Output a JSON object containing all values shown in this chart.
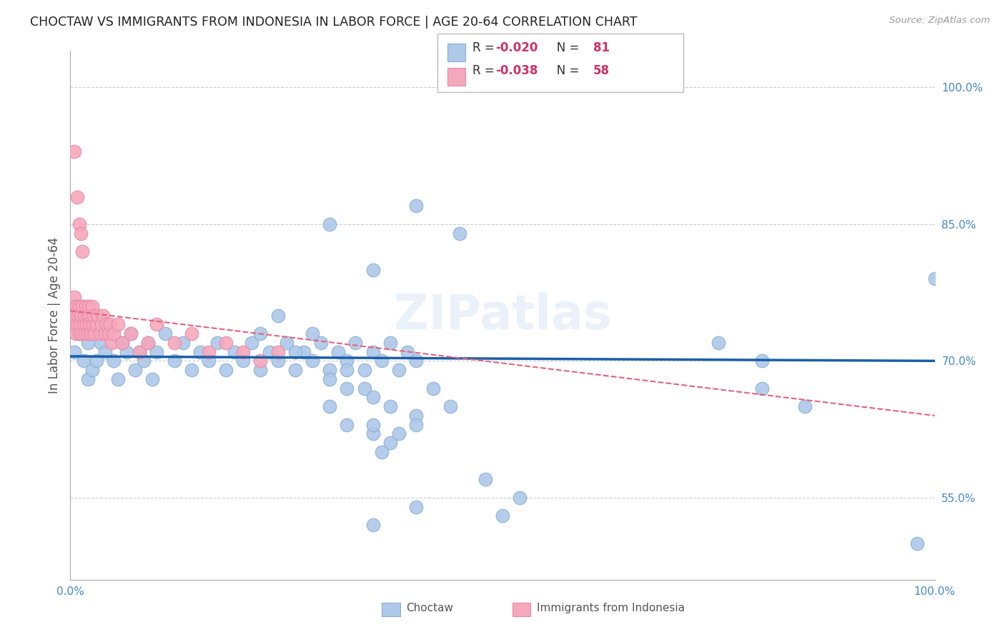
{
  "title": "CHOCTAW VS IMMIGRANTS FROM INDONESIA IN LABOR FORCE | AGE 20-64 CORRELATION CHART",
  "source": "Source: ZipAtlas.com",
  "ylabel": "In Labor Force | Age 20-64",
  "xlim": [
    0.0,
    1.0
  ],
  "ylim": [
    0.46,
    1.04
  ],
  "ytick_positions": [
    0.55,
    0.7,
    0.85,
    1.0
  ],
  "ytick_labels": [
    "55.0%",
    "70.0%",
    "85.0%",
    "100.0%"
  ],
  "blue_R": -0.02,
  "blue_N": 81,
  "pink_R": -0.038,
  "pink_N": 58,
  "blue_color": "#adc8e8",
  "pink_color": "#f5a8bc",
  "blue_edge_color": "#88aed4",
  "pink_edge_color": "#e888a8",
  "blue_line_color": "#1a5fa8",
  "pink_line_color": "#e8607a",
  "watermark": "ZIPatlas",
  "blue_scatter_x": [
    0.005,
    0.01,
    0.015,
    0.02,
    0.02,
    0.025,
    0.025,
    0.03,
    0.035,
    0.04,
    0.045,
    0.05,
    0.055,
    0.06,
    0.065,
    0.07,
    0.075,
    0.08,
    0.085,
    0.09,
    0.095,
    0.1,
    0.11,
    0.12,
    0.13,
    0.14,
    0.15,
    0.16,
    0.17,
    0.18,
    0.19,
    0.2,
    0.21,
    0.22,
    0.23,
    0.24,
    0.25,
    0.26,
    0.27,
    0.28,
    0.29,
    0.3,
    0.31,
    0.32,
    0.33,
    0.34,
    0.35,
    0.36,
    0.37,
    0.38,
    0.39,
    0.4,
    0.3,
    0.22,
    0.24,
    0.26,
    0.28,
    0.32,
    0.34,
    0.35,
    0.37,
    0.4,
    0.42,
    0.32,
    0.35,
    0.37,
    0.4,
    0.44,
    0.36,
    0.38,
    0.3,
    0.32,
    0.35,
    0.75,
    0.8,
    0.8,
    0.85,
    0.98,
    1.0,
    0.48,
    0.52
  ],
  "blue_scatter_y": [
    0.71,
    0.73,
    0.7,
    0.72,
    0.68,
    0.74,
    0.69,
    0.7,
    0.72,
    0.71,
    0.73,
    0.7,
    0.68,
    0.72,
    0.71,
    0.73,
    0.69,
    0.71,
    0.7,
    0.72,
    0.68,
    0.71,
    0.73,
    0.7,
    0.72,
    0.69,
    0.71,
    0.7,
    0.72,
    0.69,
    0.71,
    0.7,
    0.72,
    0.69,
    0.71,
    0.7,
    0.72,
    0.69,
    0.71,
    0.7,
    0.72,
    0.69,
    0.71,
    0.7,
    0.72,
    0.69,
    0.71,
    0.7,
    0.72,
    0.69,
    0.71,
    0.7,
    0.68,
    0.73,
    0.75,
    0.71,
    0.73,
    0.69,
    0.67,
    0.66,
    0.65,
    0.64,
    0.67,
    0.63,
    0.62,
    0.61,
    0.63,
    0.65,
    0.6,
    0.62,
    0.65,
    0.67,
    0.63,
    0.72,
    0.67,
    0.7,
    0.65,
    0.5,
    0.79,
    0.57,
    0.55
  ],
  "blue_scatter_x2": [
    0.3,
    0.35,
    0.4,
    0.45,
    0.5,
    0.35,
    0.4
  ],
  "blue_scatter_y2": [
    0.85,
    0.8,
    0.87,
    0.84,
    0.53,
    0.52,
    0.54
  ],
  "pink_scatter_x": [
    0.002,
    0.003,
    0.004,
    0.005,
    0.006,
    0.007,
    0.008,
    0.009,
    0.01,
    0.01,
    0.011,
    0.012,
    0.013,
    0.014,
    0.015,
    0.016,
    0.017,
    0.018,
    0.019,
    0.02,
    0.02,
    0.021,
    0.022,
    0.023,
    0.024,
    0.025,
    0.026,
    0.027,
    0.028,
    0.03,
    0.032,
    0.034,
    0.036,
    0.038,
    0.04,
    0.042,
    0.044,
    0.046,
    0.048,
    0.05,
    0.055,
    0.06,
    0.07,
    0.08,
    0.09,
    0.1,
    0.12,
    0.14,
    0.16,
    0.18,
    0.2,
    0.22,
    0.24,
    0.005,
    0.008,
    0.01,
    0.012,
    0.014
  ],
  "pink_scatter_y": [
    0.76,
    0.74,
    0.75,
    0.77,
    0.73,
    0.76,
    0.74,
    0.75,
    0.73,
    0.76,
    0.74,
    0.75,
    0.73,
    0.76,
    0.74,
    0.75,
    0.73,
    0.76,
    0.74,
    0.75,
    0.73,
    0.76,
    0.74,
    0.75,
    0.73,
    0.76,
    0.74,
    0.75,
    0.73,
    0.74,
    0.75,
    0.73,
    0.74,
    0.75,
    0.73,
    0.74,
    0.73,
    0.74,
    0.72,
    0.73,
    0.74,
    0.72,
    0.73,
    0.71,
    0.72,
    0.74,
    0.72,
    0.73,
    0.71,
    0.72,
    0.71,
    0.7,
    0.71,
    0.93,
    0.88,
    0.85,
    0.84,
    0.82
  ],
  "blue_trend_x": [
    0.0,
    1.0
  ],
  "blue_trend_y": [
    0.705,
    0.7
  ],
  "pink_trend_x": [
    0.0,
    1.0
  ],
  "pink_trend_y": [
    0.755,
    0.64
  ]
}
